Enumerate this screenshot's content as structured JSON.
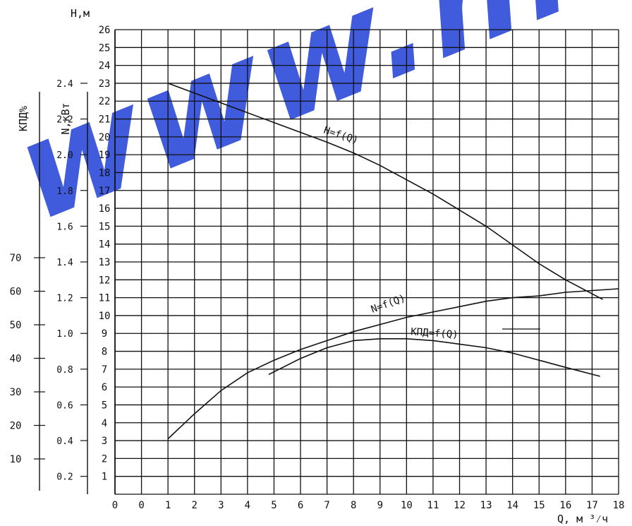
{
  "watermark": {
    "text": "www.hi",
    "color": "#1f3fd6"
  },
  "chart_data": {
    "type": "line",
    "x_axis": {
      "label": "Q,  м ³⁄ч",
      "range": [
        0,
        18
      ],
      "ticks": [
        "0",
        "0",
        "1",
        "2",
        "3",
        "4",
        "5",
        "6",
        "7",
        "8",
        "9",
        "10",
        "11",
        "12",
        "13",
        "14",
        "15",
        "16",
        "17",
        "18"
      ]
    },
    "y_axes": {
      "head": {
        "label": "H,м",
        "range": [
          0,
          26
        ],
        "ticks": [
          "1",
          "2",
          "3",
          "4",
          "5",
          "6",
          "7",
          "8",
          "9",
          "10",
          "11",
          "12",
          "13",
          "14",
          "15",
          "16",
          "17",
          "18",
          "19",
          "20",
          "21",
          "22",
          "23",
          "24",
          "25",
          "26"
        ]
      },
      "power": {
        "label": "N,кВт",
        "ticks": [
          "0.2",
          "0.4",
          "0.6",
          "0.8",
          "1.0",
          "1.2",
          "1.4",
          "1.6",
          "1.8",
          "2.0",
          "2.2",
          "2.4"
        ]
      },
      "efficiency": {
        "label": "КПД%",
        "ticks": [
          "10",
          "20",
          "30",
          "40",
          "50",
          "60",
          "70"
        ]
      }
    },
    "grid": true,
    "series": [
      {
        "name": "H=f(Q)",
        "color": "#111111",
        "x": [
          1,
          3,
          5,
          7,
          8,
          9,
          11,
          13,
          15,
          16,
          17.4
        ],
        "y": [
          23,
          21.9,
          20.8,
          19.7,
          19.1,
          18.4,
          16.8,
          15.0,
          12.9,
          12.0,
          10.9
        ]
      },
      {
        "name": "N=f(Q)",
        "color": "#111111",
        "x": [
          1,
          2,
          3,
          4,
          5,
          6,
          7,
          8,
          9,
          10,
          11,
          12,
          13,
          14,
          15,
          16,
          17,
          18
        ],
        "y": [
          3.1,
          4.5,
          5.8,
          6.8,
          7.5,
          8.1,
          8.6,
          9.1,
          9.5,
          9.9,
          10.2,
          10.5,
          10.8,
          11.0,
          11.1,
          11.3,
          11.4,
          11.5
        ]
      },
      {
        "name": "КПД=f(Q)",
        "color": "#111111",
        "x": [
          4.8,
          6,
          7,
          8,
          9,
          10,
          11,
          12,
          13,
          14,
          15,
          16,
          17.3
        ],
        "y": [
          6.7,
          7.6,
          8.2,
          8.6,
          8.7,
          8.7,
          8.6,
          8.4,
          8.2,
          7.9,
          7.5,
          7.1,
          6.6
        ]
      }
    ]
  }
}
